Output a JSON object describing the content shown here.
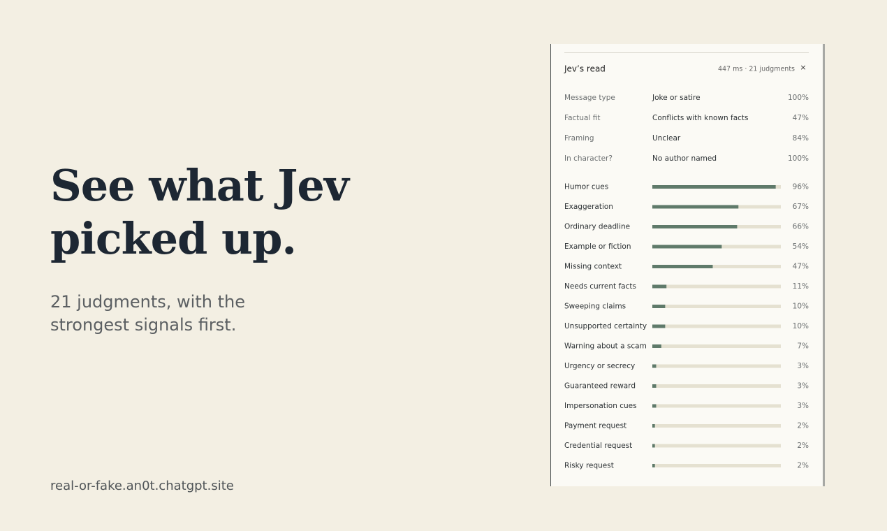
{
  "headline": [
    "See what Jev",
    "picked up."
  ],
  "subtitle": [
    "21 judgments, with the",
    "strongest signals first."
  ],
  "url": "real-or-fake.an0t.chatgpt.site",
  "panel": {
    "title": "Jev’s read",
    "meta": "447 ms · 21 judgments",
    "close": "×",
    "rows": [
      [
        "Message type",
        "Joke or satire",
        "100%"
      ],
      [
        "Factual fit",
        "Conflicts with known facts",
        "47%"
      ],
      [
        "Framing",
        "Unclear",
        "84%"
      ],
      [
        "In character?",
        "No author named",
        "100%"
      ]
    ],
    "signals": {
      "categories": [
        "Humor cues",
        "Exaggeration",
        "Ordinary deadline",
        "Example or fiction",
        "Missing context",
        "Needs current facts",
        "Sweeping claims",
        "Unsupported certainty",
        "Warning about a scam",
        "Urgency or secrecy",
        "Guaranteed reward",
        "Impersonation cues",
        "Payment request",
        "Credential request",
        "Risky request"
      ],
      "values": [
        96,
        67,
        66,
        54,
        47,
        11,
        10,
        10,
        7,
        3,
        3,
        3,
        2,
        2,
        2
      ],
      "value_labels": [
        "96%",
        "67%",
        "66%",
        "54%",
        "47%",
        "11%",
        "10%",
        "10%",
        "7%",
        "3%",
        "3%",
        "3%",
        "2%",
        "2%",
        "2%"
      ],
      "xlim": [
        0,
        100
      ],
      "color": "#5f7a6a"
    }
  }
}
